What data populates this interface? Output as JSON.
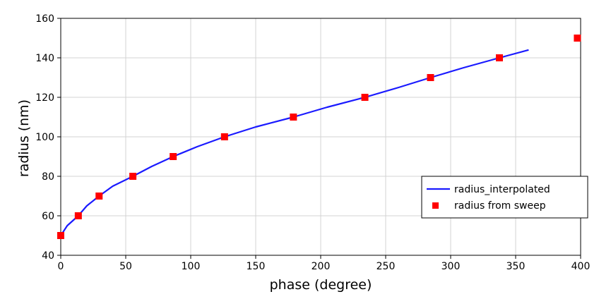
{
  "chart_data": {
    "type": "line",
    "xlabel": "phase (degree)",
    "ylabel": "radius (nm)",
    "xlim": [
      0,
      400
    ],
    "ylim": [
      40,
      160
    ],
    "x_ticks": [
      0,
      50,
      100,
      150,
      200,
      250,
      300,
      350,
      400
    ],
    "y_ticks": [
      40,
      60,
      80,
      100,
      120,
      140,
      160
    ],
    "grid": true,
    "legend_position": "lower-right",
    "series": [
      {
        "name": "radius_interpolated",
        "kind": "line",
        "color": "#1a1aff",
        "x": [
          0,
          5,
          13.5,
          20,
          29.5,
          40,
          55.5,
          70,
          86.5,
          105,
          126,
          150,
          179,
          205,
          234,
          260,
          284.5,
          310,
          337.5,
          360
        ],
        "y": [
          50,
          55,
          60,
          65,
          70,
          75,
          80,
          85,
          90,
          95,
          100,
          105,
          110,
          115,
          120,
          125,
          130,
          135,
          140,
          144
        ]
      },
      {
        "name": "radius from sweep",
        "kind": "scatter",
        "color": "#ff0000",
        "x": [
          0,
          13.5,
          29.5,
          55.5,
          86.5,
          126,
          179,
          234,
          284.5,
          337.5,
          397.5
        ],
        "y": [
          50,
          60,
          70,
          80,
          90,
          100,
          110,
          120,
          130,
          140,
          150
        ]
      }
    ]
  }
}
